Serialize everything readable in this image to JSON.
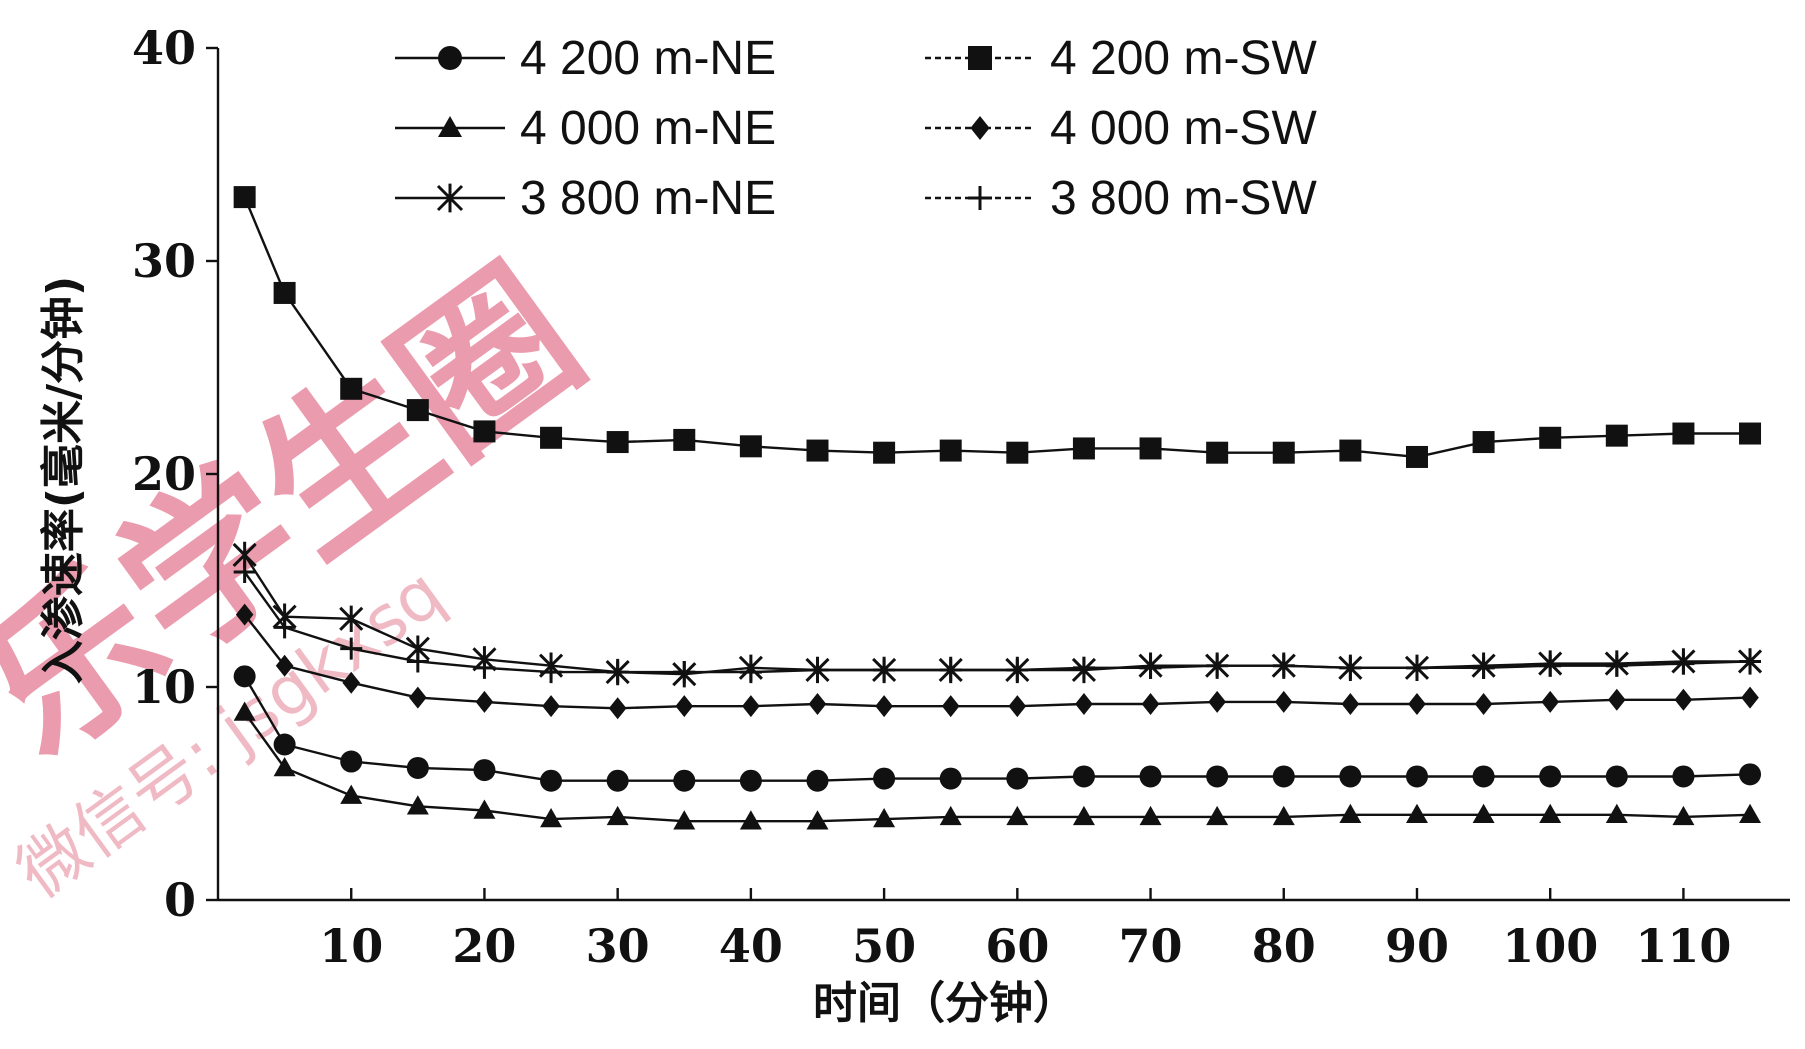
{
  "chart_data": {
    "type": "line",
    "title": "",
    "xlabel": "时间（分钟）",
    "ylabel": "入渗速率(毫米/分钟)",
    "xlim": [
      0,
      118
    ],
    "ylim": [
      0,
      40
    ],
    "x_ticks": [
      10,
      20,
      30,
      40,
      50,
      60,
      70,
      80,
      90,
      100,
      110
    ],
    "y_ticks": [
      0,
      10,
      20,
      30,
      40
    ],
    "grid": false,
    "legend_position": "top",
    "x": [
      2,
      5,
      10,
      15,
      20,
      25,
      30,
      35,
      40,
      45,
      50,
      55,
      60,
      65,
      70,
      75,
      80,
      85,
      90,
      95,
      100,
      105,
      110,
      115
    ],
    "series": [
      {
        "name": "4 200 m-NE",
        "marker": "circle",
        "line_style": "solid",
        "values": [
          10.5,
          7.3,
          6.5,
          6.2,
          6.1,
          5.6,
          5.6,
          5.6,
          5.6,
          5.6,
          5.7,
          5.7,
          5.7,
          5.8,
          5.8,
          5.8,
          5.8,
          5.8,
          5.8,
          5.8,
          5.8,
          5.8,
          5.8,
          5.9
        ]
      },
      {
        "name": "4 200 m-SW",
        "marker": "square",
        "line_style": "solid",
        "values": [
          33.0,
          28.5,
          24.0,
          23.0,
          22.0,
          21.7,
          21.5,
          21.6,
          21.3,
          21.1,
          21.0,
          21.1,
          21.0,
          21.2,
          21.2,
          21.0,
          21.0,
          21.1,
          20.8,
          21.5,
          21.7,
          21.8,
          21.9,
          21.9
        ]
      },
      {
        "name": "4 000 m-NE",
        "marker": "triangle",
        "line_style": "solid",
        "values": [
          8.8,
          6.2,
          4.9,
          4.4,
          4.2,
          3.8,
          3.9,
          3.7,
          3.7,
          3.7,
          3.8,
          3.9,
          3.9,
          3.9,
          3.9,
          3.9,
          3.9,
          4.0,
          4.0,
          4.0,
          4.0,
          4.0,
          3.9,
          4.0
        ]
      },
      {
        "name": "4 000 m-SW",
        "marker": "diamond",
        "line_style": "solid",
        "values": [
          13.4,
          11.0,
          10.2,
          9.5,
          9.3,
          9.1,
          9.0,
          9.1,
          9.1,
          9.2,
          9.1,
          9.1,
          9.1,
          9.2,
          9.2,
          9.3,
          9.3,
          9.2,
          9.2,
          9.2,
          9.3,
          9.4,
          9.4,
          9.5
        ]
      },
      {
        "name": "3 800 m-NE",
        "marker": "star",
        "line_style": "solid",
        "values": [
          16.2,
          13.3,
          13.2,
          11.8,
          11.3,
          11.0,
          10.7,
          10.6,
          10.9,
          10.8,
          10.8,
          10.8,
          10.8,
          10.8,
          11.0,
          11.0,
          11.0,
          10.9,
          10.9,
          11.0,
          11.1,
          11.1,
          11.2,
          11.2
        ]
      },
      {
        "name": "3 800 m-SW",
        "marker": "plus",
        "line_style": "solid",
        "values": [
          15.4,
          12.8,
          11.8,
          11.2,
          10.9,
          10.7,
          10.7,
          10.7,
          10.7,
          10.8,
          10.8,
          10.8,
          10.8,
          10.9,
          10.9,
          11.0,
          11.0,
          10.9,
          10.9,
          10.9,
          11.0,
          11.0,
          11.1,
          11.2
        ]
      }
    ]
  },
  "watermark": {
    "main_text": "乐学生圈",
    "sub_text": "微信号: jsgkxsq",
    "color": "#e57a93"
  },
  "colors": {
    "ink": "#111111",
    "background": "#ffffff"
  }
}
